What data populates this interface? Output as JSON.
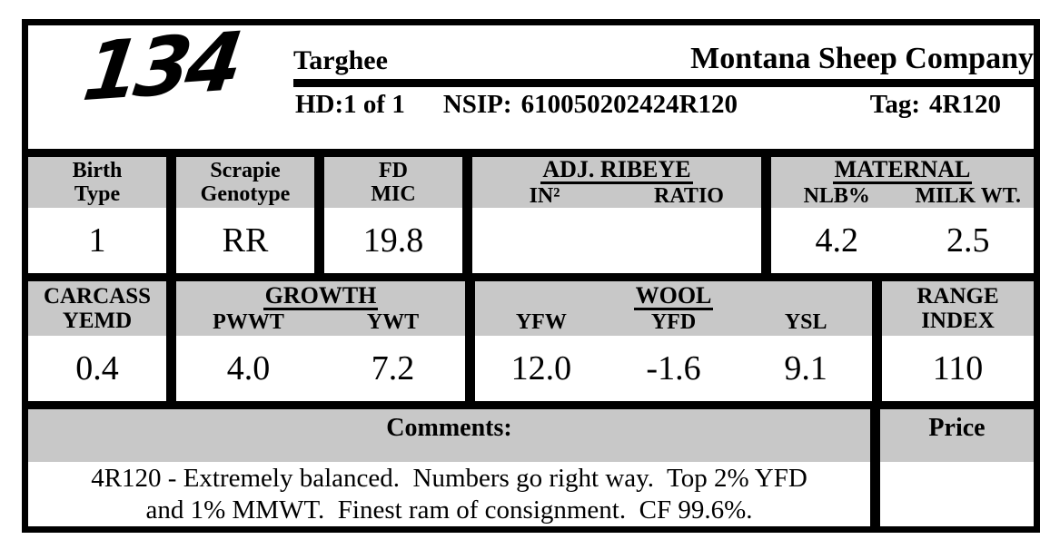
{
  "colors": {
    "page_bg": "#ffffff",
    "header_gray": "#c8c8c8",
    "line_black": "#000000"
  },
  "header": {
    "lot_number": "134",
    "breed": "Targhee",
    "company": "Montana Sheep Company",
    "hd_count": "HD:1 of 1",
    "nsip_label": "NSIP:",
    "nsip_value": "610050202424R120",
    "tag_label": "Tag:",
    "tag_value": "4R120"
  },
  "stats_row1": [
    {
      "label_lines": [
        "Birth",
        "Type"
      ],
      "value": "1"
    },
    {
      "label_lines": [
        "Scrapie",
        "Genotype"
      ],
      "value": "RR"
    },
    {
      "label_lines": [
        "FD",
        "MIC"
      ],
      "value": "19.8"
    },
    {
      "group": "ADJ. RIBEYE",
      "cols": [
        {
          "label": "IN²",
          "value": ""
        },
        {
          "label": "RATIO",
          "value": ""
        }
      ]
    },
    {
      "group": "MATERNAL",
      "cols": [
        {
          "label": "NLB%",
          "value": "4.2"
        },
        {
          "label": "MILK WT.",
          "value": "2.5"
        }
      ]
    }
  ],
  "stats_row2": [
    {
      "label_lines": [
        "CARCASS",
        "YEMD"
      ],
      "value": "0.4"
    },
    {
      "group": "GROWTH",
      "cols": [
        {
          "label": "PWWT",
          "value": "4.0"
        },
        {
          "label": "YWT",
          "value": "7.2"
        }
      ]
    },
    {
      "group": "WOOL",
      "cols": [
        {
          "label": "YFW",
          "value": "12.0"
        },
        {
          "label": "YFD",
          "value": "-1.6"
        },
        {
          "label": "YSL",
          "value": "9.1"
        }
      ]
    },
    {
      "label_lines": [
        "RANGE",
        "INDEX"
      ],
      "value": "110"
    }
  ],
  "comments": {
    "label": "Comments:",
    "lines": [
      "4R120 - Extremely balanced.  Numbers go right way.  Top 2% YFD",
      "and 1% MMWT.  Finest ram of consignment.  CF 99.6%."
    ]
  },
  "price": {
    "label": "Price",
    "value": ""
  }
}
